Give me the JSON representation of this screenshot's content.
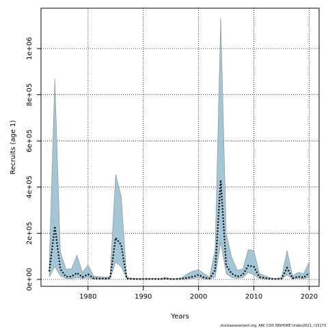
{
  "chart_data": {
    "type": "area",
    "xlabel": "Years",
    "ylabel": "Recruits (age 1)",
    "credit": "stockassessment.org, ARC COD INSHORE Undev2021, r15173",
    "xlim": [
      1971.5,
      2021.8
    ],
    "ylim": [
      -30000,
      1175000
    ],
    "x_ticks": [
      1980,
      1990,
      2000,
      2010,
      2020
    ],
    "x_tick_labels": [
      "1980",
      "1990",
      "2000",
      "2010",
      "2020"
    ],
    "y_ticks": [
      0,
      200000,
      400000,
      600000,
      800000,
      1000000
    ],
    "y_tick_labels": [
      "0e+00",
      "2e+05",
      "4e+05",
      "6e+05",
      "8e+05",
      "1e+06"
    ],
    "grid": true,
    "band_color": "#a3c6d6",
    "band_edge_color": "#8a8a8a",
    "line_color": "#000000",
    "x": [
      1973,
      1974,
      1975,
      1976,
      1977,
      1978,
      1979,
      1980,
      1981,
      1982,
      1983,
      1984,
      1985,
      1986,
      1987,
      1988,
      1989,
      1990,
      1991,
      1992,
      1993,
      1994,
      1995,
      1996,
      1997,
      1998,
      1999,
      2000,
      2001,
      2002,
      2003,
      2004,
      2005,
      2006,
      2007,
      2008,
      2009,
      2010,
      2011,
      2012,
      2013,
      2014,
      2015,
      2016,
      2017,
      2018,
      2019,
      2020
    ],
    "estimate": [
      35000,
      230000,
      45000,
      12000,
      12000,
      28000,
      10000,
      22000,
      5000,
      4000,
      3000,
      5000,
      180000,
      150000,
      4000,
      2000,
      1500,
      1500,
      2000,
      2000,
      1500,
      4000,
      1500,
      1500,
      3000,
      7000,
      12000,
      20000,
      8000,
      4000,
      40000,
      430000,
      60000,
      25000,
      12000,
      20000,
      60000,
      55000,
      10000,
      6000,
      2500,
      1500,
      3000,
      50000,
      5000,
      12000,
      8000,
      28000
    ],
    "upper": [
      80000,
      870000,
      120000,
      45000,
      45000,
      105000,
      30000,
      62000,
      15000,
      12000,
      10000,
      12000,
      455000,
      360000,
      9000,
      5000,
      3000,
      4000,
      4000,
      4000,
      3000,
      9000,
      3000,
      3000,
      8000,
      25000,
      35000,
      42000,
      25000,
      10000,
      130000,
      1135000,
      200000,
      95000,
      40000,
      45000,
      130000,
      125000,
      25000,
      15000,
      7000,
      3000,
      9000,
      125000,
      15000,
      30000,
      25000,
      75000
    ],
    "lower": [
      10000,
      55000,
      15000,
      4000,
      3000,
      8000,
      3000,
      7000,
      2000,
      1500,
      1000,
      1500,
      75000,
      55000,
      1000,
      500,
      500,
      500,
      500,
      500,
      500,
      1000,
      500,
      500,
      800,
      2000,
      4000,
      8000,
      2000,
      1000,
      10000,
      160000,
      25000,
      8000,
      4000,
      8000,
      30000,
      20000,
      4000,
      2000,
      800,
      500,
      1000,
      20000,
      2000,
      5000,
      3000,
      8000
    ]
  }
}
